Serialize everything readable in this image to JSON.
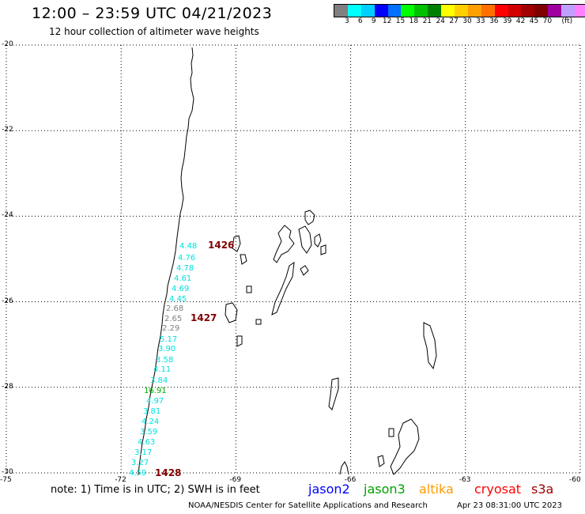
{
  "header": {
    "title": "12:00 – 23:59 UTC 04/21/2023",
    "subtitle": "12 hour collection of altimeter wave heights"
  },
  "legend": {
    "colors": [
      "#808080",
      "#00ffff",
      "#00d0ff",
      "#0000ff",
      "#0070ff",
      "#00ff00",
      "#00c000",
      "#008000",
      "#ffff00",
      "#ffd000",
      "#ffa000",
      "#ff7000",
      "#ff0000",
      "#d00000",
      "#a00000",
      "#800000",
      "#a000a0",
      "#c0a0ff",
      "#ff80ff",
      "#000000"
    ],
    "labels": [
      "3",
      "6",
      "9",
      "12",
      "15",
      "18",
      "21",
      "24",
      "27",
      "30",
      "33",
      "36",
      "39",
      "42",
      "45",
      "70",
      "(ft)"
    ]
  },
  "axes": {
    "lat_labels": [
      "-20",
      "-22",
      "-24",
      "-26",
      "-28",
      "-30"
    ],
    "lon_labels": [
      "-75",
      "-72",
      "-69",
      "-66",
      "-63",
      "-60"
    ]
  },
  "wave_labels": [
    {
      "text": "4.48",
      "color": "#00e0e0"
    },
    {
      "text": "4.76",
      "color": "#00e0e0"
    },
    {
      "text": "4.78",
      "color": "#00e0e0"
    },
    {
      "text": "4.61",
      "color": "#00e0e0"
    },
    {
      "text": "4.69",
      "color": "#00e0e0"
    },
    {
      "text": "4.45",
      "color": "#00e0e0"
    },
    {
      "text": "2.68",
      "color": "#808080"
    },
    {
      "text": "2.65",
      "color": "#808080"
    },
    {
      "text": "2.29",
      "color": "#808080"
    },
    {
      "text": "5.17",
      "color": "#00e0e0"
    },
    {
      "text": "3.90",
      "color": "#00e0e0"
    },
    {
      "text": "3.58",
      "color": "#00e0e0"
    },
    {
      "text": "4.11",
      "color": "#00e0e0"
    },
    {
      "text": "3.84",
      "color": "#00e0e0"
    },
    {
      "text": "16.91",
      "color": "#00b000"
    },
    {
      "text": "4.97",
      "color": "#00e0e0"
    },
    {
      "text": "3.81",
      "color": "#00e0e0"
    },
    {
      "text": "4.24",
      "color": "#00e0e0"
    },
    {
      "text": "3.59",
      "color": "#00e0e0"
    },
    {
      "text": "4.63",
      "color": "#00e0e0"
    },
    {
      "text": "3.17",
      "color": "#00e0e0"
    },
    {
      "text": "3.27",
      "color": "#00e0e0"
    },
    {
      "text": "4.59",
      "color": "#00e0e0"
    }
  ],
  "time_labels": [
    {
      "text": "1426",
      "color": "#800000"
    },
    {
      "text": "1427",
      "color": "#800000"
    },
    {
      "text": "1428",
      "color": "#800000"
    }
  ],
  "footer": {
    "note": "note: 1) Time is in UTC; 2) SWH is in feet",
    "satellites": [
      {
        "name": "jason2",
        "color": "#0000ff"
      },
      {
        "name": "jason3",
        "color": "#00a000"
      },
      {
        "name": "altika",
        "color": "#ff9900"
      },
      {
        "name": "cryosat",
        "color": "#ff0000"
      },
      {
        "name": "s3a",
        "color": "#a00000"
      }
    ],
    "credit": "NOAA/NESDIS Center for Satellite Applications and Research",
    "date": "Apr 23 08:31:00 UTC 2023"
  }
}
